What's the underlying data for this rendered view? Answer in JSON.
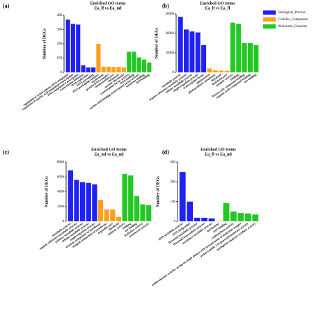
{
  "legend": [
    {
      "name": "Biological_Process",
      "color": "#1f22f2"
    },
    {
      "name": "Cellular_Component",
      "color": "#ff9f1a"
    },
    {
      "name": "Molecular_Function",
      "color": "#22c922"
    }
  ],
  "chart_data": [
    {
      "type": "bar",
      "label": "(a)",
      "title": "Enriched GO terms",
      "subtitle": "Ea_lf vs Ea_mf",
      "ylabel": "Number of DEGs",
      "ylim": [
        0,
        400
      ],
      "yticks": [
        0,
        100,
        200,
        300,
        400
      ],
      "categories": [
        "regulation of transcription, DNA-templated",
        "regulation of nucleic acid-templated transcription",
        "DNA-templated transcription",
        "transcription initiation",
        "DNA replication",
        "DNA packaging",
        "DNA packaging complex",
        "nucleosome",
        "protein-DNA complex",
        "chromosomal part",
        "chromatin",
        "nuclear chromatin",
        "transcription factor activity",
        "DNA binding",
        "nucleic acid binding transcription factor activity",
        "metal ion binding",
        "ATP binding"
      ],
      "values": [
        370,
        340,
        335,
        50,
        35,
        35,
        200,
        40,
        40,
        38,
        38,
        35,
        145,
        145,
        105,
        90,
        70
      ],
      "colors": [
        "#1f22f2",
        "#1f22f2",
        "#1f22f2",
        "#1f22f2",
        "#1f22f2",
        "#1f22f2",
        "#ff9f1a",
        "#ff9f1a",
        "#ff9f1a",
        "#ff9f1a",
        "#ff9f1a",
        "#ff9f1a",
        "#22c922",
        "#22c922",
        "#22c922",
        "#22c922",
        "#22c922"
      ]
    },
    {
      "type": "bar",
      "label": "(b)",
      "title": "Enriched GO terms",
      "subtitle": "Ea_lf vs Ea_fl",
      "ylabel": "Number of DEGs",
      "ylim": [
        0,
        30000
      ],
      "yticks": [
        0,
        10000,
        20000,
        30000
      ],
      "categories": [
        "metabolic process",
        "organic substance metabolic process",
        "cellular metabolic process",
        "single-organism process",
        "transcription factor",
        "photosystem",
        "photosynthetic membrane",
        "thylakoid",
        "thylakoid part",
        "catalytic activity",
        "binding",
        "heterocyclic compound binding",
        "organic cyclic compound binding",
        "ion binding"
      ],
      "values": [
        28500,
        22000,
        21000,
        20500,
        14000,
        2000,
        1000,
        900,
        800,
        25500,
        25000,
        15000,
        15000,
        14000
      ],
      "colors": [
        "#1f22f2",
        "#1f22f2",
        "#1f22f2",
        "#1f22f2",
        "#1f22f2",
        "#ff9f1a",
        "#ff9f1a",
        "#ff9f1a",
        "#ff9f1a",
        "#22c922",
        "#22c922",
        "#22c922",
        "#22c922",
        "#22c922"
      ]
    },
    {
      "type": "bar",
      "label": "(c)",
      "title": "Enriched GO terms",
      "subtitle": "Ea_mf vs Ea_ml",
      "ylabel": "Number of DEGs",
      "ylim": [
        0,
        8000
      ],
      "yticks": [
        0,
        2000,
        4000,
        6000,
        8000
      ],
      "categories": [
        "metabolic process",
        "organic substance metabolic process",
        "primary metabolic process",
        "cellular metabolic process",
        "single-organism process",
        "intrinsic component of membrane",
        "integral component of membrane",
        "organelle part",
        "thylakoid",
        "catalytic activity",
        "binding",
        "ion binding",
        "hydrolase activity",
        "transferase activity"
      ],
      "values": [
        6900,
        5600,
        5300,
        5200,
        5000,
        2900,
        1600,
        1600,
        600,
        6400,
        6200,
        3400,
        2300,
        2200
      ],
      "colors": [
        "#1f22f2",
        "#1f22f2",
        "#1f22f2",
        "#1f22f2",
        "#1f22f2",
        "#ff9f1a",
        "#ff9f1a",
        "#ff9f1a",
        "#ff9f1a",
        "#22c922",
        "#22c922",
        "#22c922",
        "#22c922",
        "#22c922"
      ]
    },
    {
      "type": "bar",
      "label": "(d)",
      "title": "Enriched GO terms",
      "subtitle": "Ea_fl vs Ea_ml",
      "ylabel": "Number of DEGs",
      "ylim": [
        0,
        300
      ],
      "yticks": [
        0,
        100,
        200,
        300
      ],
      "categories": [
        "DNA metabolic process",
        "DNA integration",
        "flavonoid metabolic process",
        "flavonoid biosynthetic process",
        "secondary metabolic process",
        "nucleosome",
        "ATP binding",
        "endonuclease activity",
        "oxidoreductase activity, acting on single donors with incorporation of molecular oxygen",
        "anthocyanidin 3-O-glucosyltransferase activity",
        "naringenin-chalcone synthase activity"
      ],
      "values": [
        250,
        100,
        18,
        18,
        15,
        3,
        92,
        50,
        42,
        40,
        35
      ],
      "colors": [
        "#1f22f2",
        "#1f22f2",
        "#1f22f2",
        "#1f22f2",
        "#1f22f2",
        "#ff9f1a",
        "#22c922",
        "#22c922",
        "#22c922",
        "#22c922",
        "#22c922"
      ]
    }
  ]
}
